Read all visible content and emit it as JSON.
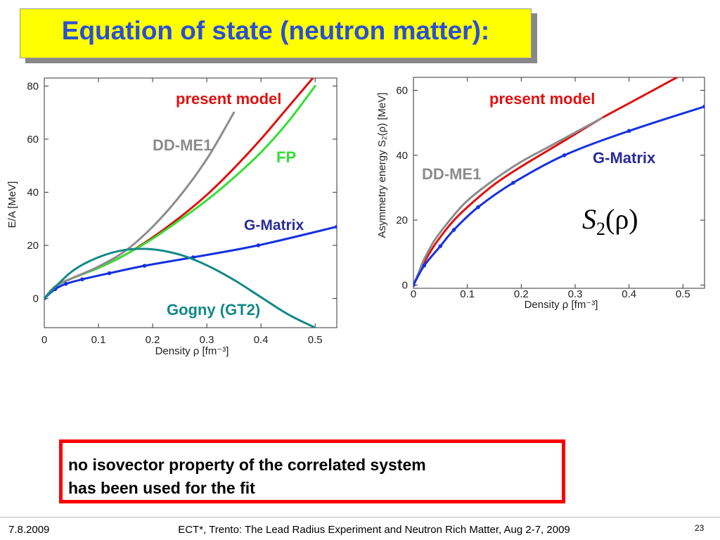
{
  "title": "Equation of state (neutron matter):",
  "note": {
    "line1": "no isovector property of the correlated system",
    "line2": "has been used for the fit"
  },
  "footer": {
    "date": "7.8.2009",
    "event": "ECT*, Trento: The Lead Radius Experiment and Neutron Rich Matter, Aug 2-7, 2009",
    "page": "23"
  },
  "formula": {
    "main": "S",
    "sub": "2",
    "arg": "(ρ)"
  },
  "colors": {
    "red": "#e01010",
    "green": "#33e033",
    "gray": "#8c8c8c",
    "blue": "#1530e0",
    "teal": "#138888"
  },
  "chart_data": [
    {
      "type": "line",
      "xlabel": "Density ρ [fm⁻³]",
      "ylabel": "E/A [MeV]",
      "xlim": [
        0,
        0.54
      ],
      "ylim": [
        -11,
        83
      ],
      "xticks": [
        "0",
        "0.1",
        "0.2",
        "0.3",
        "0.4",
        "0.5"
      ],
      "yticks": [
        "0",
        "20",
        "40",
        "60",
        "80"
      ],
      "annotations": [
        {
          "text": "present model",
          "color": "#e01010"
        },
        {
          "text": "DD-ME1",
          "color": "#8c8c8c"
        },
        {
          "text": "FP",
          "color": "#33e033"
        },
        {
          "text": "G-Matrix",
          "color": "#2b2b9a"
        },
        {
          "text": "Gogny (GT2)",
          "color": "#138888"
        }
      ],
      "series": [
        {
          "color": "#e01010",
          "x": [
            0,
            0.02,
            0.05,
            0.1,
            0.15,
            0.2,
            0.25,
            0.3,
            0.35,
            0.4,
            0.45,
            0.5
          ],
          "y": [
            0,
            4.5,
            7.5,
            11.5,
            16.5,
            23,
            30.5,
            39,
            49,
            60,
            72,
            84
          ]
        },
        {
          "color": "#33e033",
          "x": [
            0,
            0.02,
            0.05,
            0.1,
            0.15,
            0.2,
            0.25,
            0.3,
            0.35,
            0.4,
            0.45,
            0.5
          ],
          "y": [
            0,
            4.5,
            7.5,
            11.5,
            16.5,
            22.5,
            29.5,
            37,
            45.5,
            55,
            66.5,
            80
          ]
        },
        {
          "color": "#8c8c8c",
          "x": [
            0,
            0.02,
            0.05,
            0.1,
            0.15,
            0.2,
            0.25,
            0.3,
            0.35
          ],
          "y": [
            0,
            4.5,
            7.5,
            12,
            18,
            27,
            38.5,
            52.5,
            70
          ]
        },
        {
          "color": "#1530e0",
          "markers": true,
          "x": [
            0,
            0.02,
            0.04,
            0.07,
            0.12,
            0.185,
            0.275,
            0.395,
            0.54
          ],
          "y": [
            0,
            3.5,
            5.5,
            7.2,
            9.5,
            12.3,
            15.5,
            20,
            27
          ]
        },
        {
          "color": "#138888",
          "x": [
            0,
            0.05,
            0.1,
            0.15,
            0.2,
            0.25,
            0.3,
            0.35,
            0.4,
            0.45,
            0.5
          ],
          "y": [
            0,
            10,
            15.5,
            18.3,
            18.5,
            16.5,
            12.5,
            7,
            0.5,
            -6,
            -11
          ]
        }
      ]
    },
    {
      "type": "line",
      "xlabel": "Density ρ [fm⁻³]",
      "ylabel": "Asymmetry energy S₂(ρ) [MeV]",
      "xlim": [
        0,
        0.54
      ],
      "ylim": [
        -1,
        64
      ],
      "xticks": [
        "0",
        "0.1",
        "0.2",
        "0.3",
        "0.4",
        "0.5"
      ],
      "yticks": [
        "0",
        "20",
        "40",
        "60"
      ],
      "annotations": [
        {
          "text": "present model",
          "color": "#e01010"
        },
        {
          "text": "G-Matrix",
          "color": "#2b2b9a"
        },
        {
          "text": "DD-ME1",
          "color": "#8c8c8c"
        }
      ],
      "series": [
        {
          "color": "#e01010",
          "x": [
            0,
            0.01,
            0.02,
            0.04,
            0.07,
            0.1,
            0.15,
            0.2,
            0.25,
            0.3,
            0.35,
            0.4,
            0.45,
            0.5
          ],
          "y": [
            0,
            3.5,
            7,
            12.5,
            19,
            24,
            31,
            36.5,
            41.5,
            46.5,
            51.5,
            56,
            60.5,
            65
          ]
        },
        {
          "color": "#8c8c8c",
          "x": [
            0,
            0.01,
            0.02,
            0.04,
            0.07,
            0.1,
            0.15,
            0.2,
            0.25,
            0.3,
            0.35
          ],
          "y": [
            0,
            4,
            8,
            14,
            20.5,
            26,
            32.5,
            38,
            42.5,
            47,
            51.5
          ]
        },
        {
          "color": "#1530e0",
          "markers": true,
          "x": [
            0,
            0.02,
            0.05,
            0.075,
            0.12,
            0.185,
            0.28,
            0.4,
            0.54
          ],
          "y": [
            0,
            6,
            12,
            17,
            24,
            31.5,
            40,
            47.5,
            55
          ]
        }
      ]
    }
  ]
}
